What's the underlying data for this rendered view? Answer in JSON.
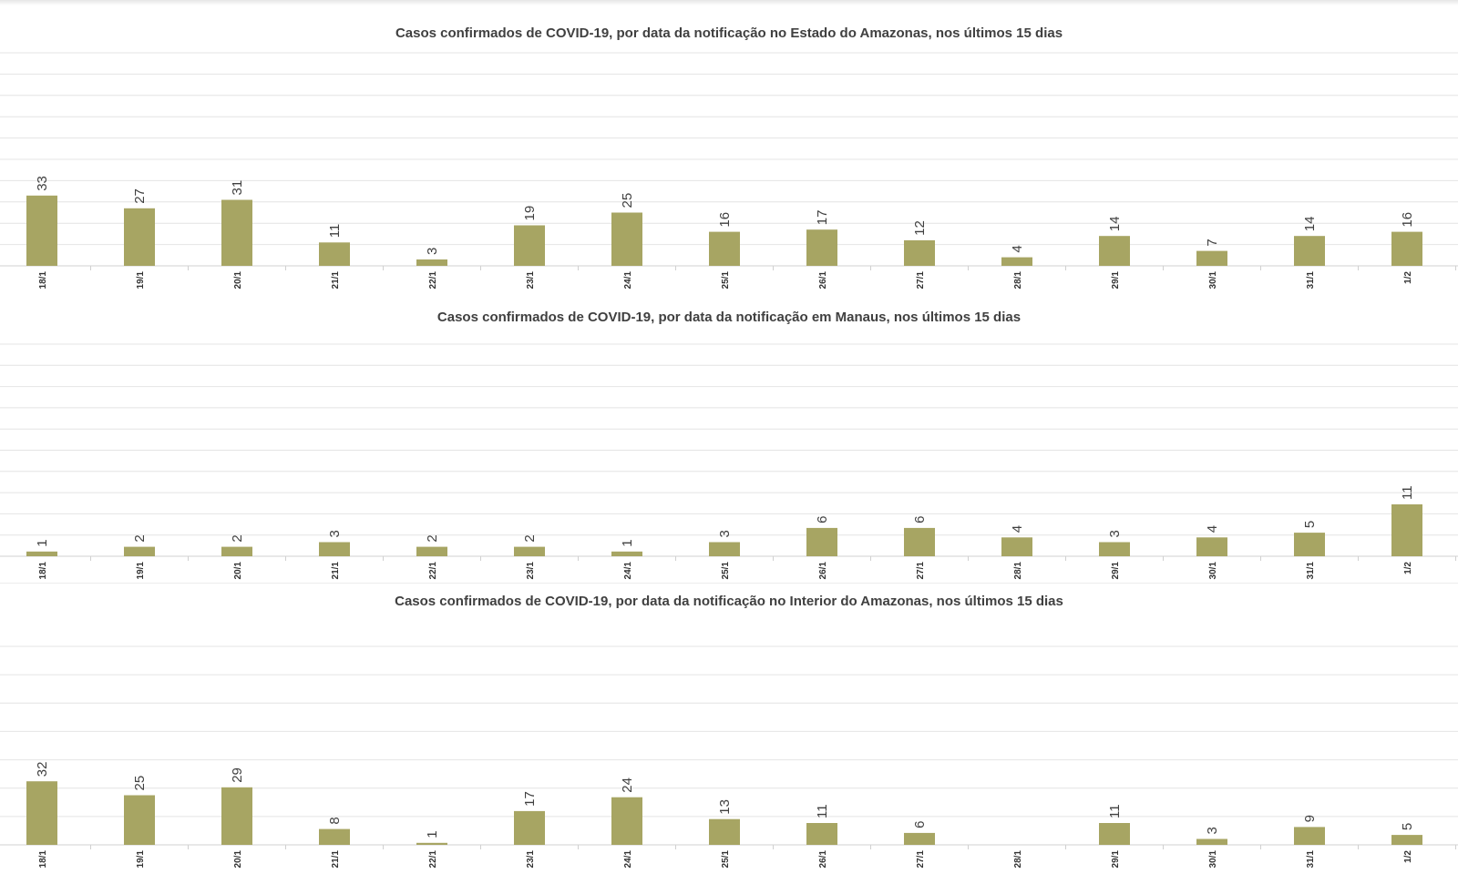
{
  "bar_color": "#a7a563",
  "grid_color": "#e4e4e4",
  "label_color": "#404040",
  "chart_data": [
    {
      "type": "bar",
      "title": "Casos confirmados de COVID-19, por data da notificação no Estado do Amazonas, nos últimos 15 dias",
      "categories": [
        "18/1",
        "19/1",
        "20/1",
        "21/1",
        "22/1",
        "23/1",
        "24/1",
        "25/1",
        "26/1",
        "27/1",
        "28/1",
        "29/1",
        "30/1",
        "31/1",
        "1/2"
      ],
      "values": [
        33,
        27,
        31,
        11,
        3,
        19,
        25,
        16,
        17,
        12,
        4,
        14,
        7,
        14,
        16
      ],
      "xlabel": "",
      "ylabel": "",
      "ylim": [
        0,
        100
      ],
      "grid": true,
      "legend": "none"
    },
    {
      "type": "bar",
      "title": "Casos confirmados de COVID-19, por data da notificação em Manaus, nos últimos 15 dias",
      "categories": [
        "18/1",
        "19/1",
        "20/1",
        "21/1",
        "22/1",
        "23/1",
        "24/1",
        "25/1",
        "26/1",
        "27/1",
        "28/1",
        "29/1",
        "30/1",
        "31/1",
        "1/2"
      ],
      "values": [
        1,
        2,
        2,
        3,
        2,
        2,
        1,
        3,
        6,
        6,
        4,
        3,
        4,
        5,
        11
      ],
      "xlabel": "",
      "ylabel": "",
      "ylim": [
        0,
        45
      ],
      "grid": true,
      "legend": "none"
    },
    {
      "type": "bar",
      "title": "Casos confirmados de COVID-19, por data da notificação no  Interior do Amazonas, nos últimos 15 dias",
      "categories": [
        "18/1",
        "19/1",
        "20/1",
        "21/1",
        "22/1",
        "23/1",
        "24/1",
        "25/1",
        "26/1",
        "27/1",
        "28/1",
        "29/1",
        "30/1",
        "31/1",
        "1/2"
      ],
      "values": [
        32,
        25,
        29,
        8,
        1,
        17,
        24,
        13,
        11,
        6,
        null,
        11,
        3,
        9,
        5
      ],
      "xlabel": "",
      "ylabel": "",
      "ylim": [
        0,
        100
      ],
      "grid": true,
      "legend": "none"
    }
  ]
}
